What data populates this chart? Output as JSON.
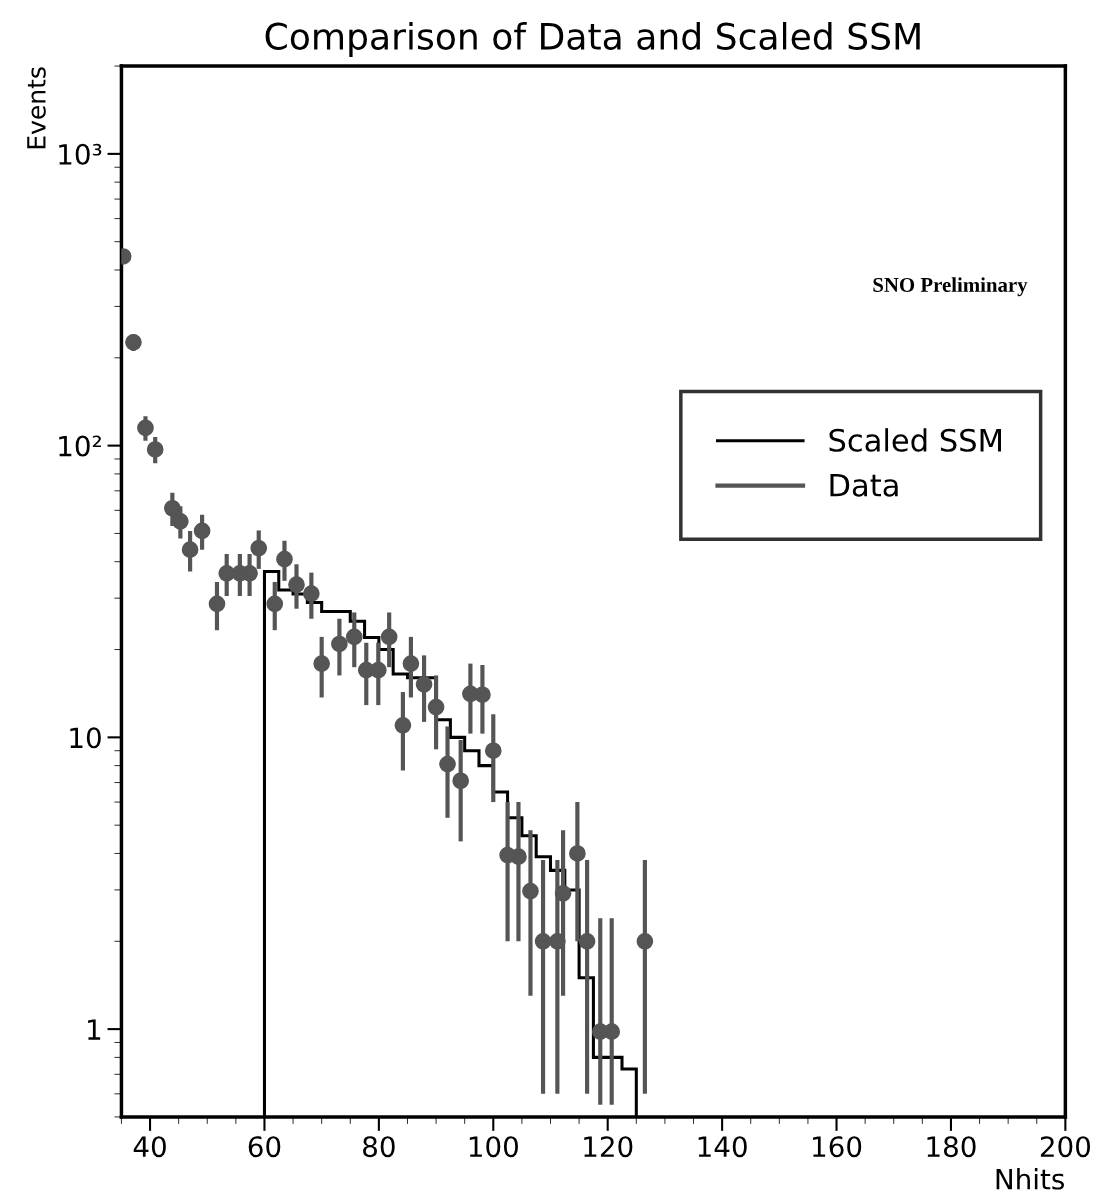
{
  "chart_data": {
    "type": "scatter",
    "title": "Comparison of Data and Scaled SSM",
    "xlabel": "Nhits",
    "ylabel": "Events",
    "xlim": [
      35,
      200
    ],
    "xticks": [
      40,
      60,
      80,
      100,
      120,
      140,
      160,
      180,
      200
    ],
    "ylim": [
      0.5,
      2000
    ],
    "log": "y",
    "yticks": [
      1,
      10,
      {
        "value": 100,
        "label": "10²"
      },
      {
        "value": 1000,
        "label": "10³"
      }
    ],
    "grid": false,
    "legend": "right",
    "marker": "circle",
    "annotations": [
      "SNO Preliminary"
    ],
    "series": [
      {
        "name": "Scaled SSM",
        "type": "histogram",
        "color": "#000000",
        "bins": [
          60,
          62.5,
          65,
          67.5,
          70,
          72.5,
          75,
          77.5,
          80,
          82.5,
          85,
          87.5,
          90,
          92.5,
          95,
          97.5,
          100,
          102.5,
          105,
          107.5,
          110,
          112.5,
          115,
          117.5,
          120,
          122.5,
          125
        ],
        "values": [
          37,
          32,
          31,
          29,
          27,
          27,
          25,
          22,
          20,
          16.5,
          16,
          16,
          11.5,
          10,
          9,
          8,
          6.5,
          5.3,
          4.6,
          3.9,
          3.5,
          3,
          1.5,
          0.8,
          0.8,
          0.73
        ]
      },
      {
        "name": "Data",
        "type": "scatter",
        "color": "#555555",
        "x": [
          35.3,
          37.1,
          39.2,
          40.9,
          43.9,
          45.3,
          47,
          49.1,
          51.7,
          53.4,
          55.7,
          57.4,
          59,
          61.8,
          63.5,
          65.6,
          68.2,
          70,
          73.1,
          75.7,
          77.8,
          79.9,
          81.8,
          84.2,
          85.6,
          87.9,
          90,
          92,
          94.3,
          96,
          98.1,
          100,
          102.5,
          104.4,
          106.5,
          108.7,
          111.2,
          112.2,
          114.7,
          116.4,
          118.7,
          120.7,
          126.5
        ],
        "values": [
          445,
          226,
          115,
          97,
          61,
          55,
          44,
          51,
          28.7,
          36.5,
          36.5,
          36.5,
          44.5,
          28.7,
          40.8,
          33.4,
          31.1,
          17.9,
          20.9,
          22.1,
          17,
          17,
          22.1,
          11,
          17.9,
          15.2,
          12.7,
          8.1,
          7.1,
          14.1,
          14,
          9,
          3.95,
          3.9,
          2.97,
          2,
          2,
          2.92,
          4,
          2,
          0.98,
          0.98,
          2
        ],
        "errors": [
          [
            424,
            466
          ],
          [
            211,
            241
          ],
          [
            104,
            126
          ],
          [
            87,
            107
          ],
          [
            53,
            69
          ],
          [
            48,
            62
          ],
          [
            37,
            51
          ],
          [
            44,
            58
          ],
          [
            23.3,
            34.1
          ],
          [
            30.5,
            42.5
          ],
          [
            30.5,
            42.5
          ],
          [
            30.5,
            42.5
          ],
          [
            37.8,
            51.2
          ],
          [
            23.3,
            34.1
          ],
          [
            34.4,
            47.2
          ],
          [
            27.6,
            39.2
          ],
          [
            25.5,
            36.7
          ],
          [
            13.7,
            22.1
          ],
          [
            16.3,
            25.5
          ],
          [
            17.4,
            26.8
          ],
          [
            12.9,
            21.1
          ],
          [
            12.9,
            21.1
          ],
          [
            17.4,
            26.8
          ],
          [
            7.7,
            14.3
          ],
          [
            13.7,
            22.1
          ],
          [
            11.3,
            19.1
          ],
          [
            9.1,
            16.3
          ],
          [
            5.3,
            10.9
          ],
          [
            4.4,
            9.8
          ],
          [
            10.3,
            17.9
          ],
          [
            10.3,
            17.7
          ],
          [
            6,
            12
          ],
          [
            2,
            6
          ],
          [
            2,
            6
          ],
          [
            1.3,
            4.8
          ],
          [
            0.6,
            3.8
          ],
          [
            0.6,
            3.8
          ],
          [
            1.3,
            4.8
          ],
          [
            2,
            6
          ],
          [
            0.6,
            3.8
          ],
          [
            0.55,
            2.4
          ],
          [
            0.55,
            2.4
          ],
          [
            0.6,
            3.8
          ]
        ]
      }
    ]
  }
}
